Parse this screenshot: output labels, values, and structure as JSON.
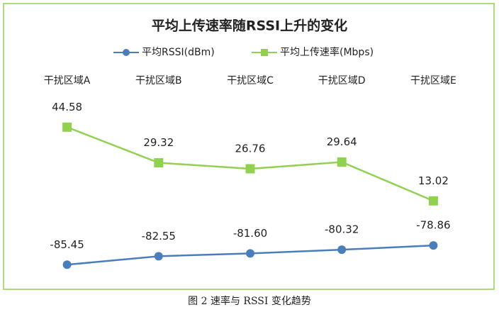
{
  "chart_data": {
    "type": "line",
    "title": "平均上传速率随RSSI上升的变化",
    "caption": "图 2 速率与 RSSI 变化趋势",
    "categories": [
      "干扰区域A",
      "干扰区域B",
      "干扰区域C",
      "干扰区域D",
      "干扰区域E"
    ],
    "series": [
      {
        "name": "平均RSSI(dBm)",
        "color": "#4a7ebb",
        "marker": "circle",
        "axis": "y2",
        "values": [
          -85.45,
          -82.55,
          -81.6,
          -80.32,
          -78.86
        ],
        "value_labels": [
          "-85.45",
          "-82.55",
          "-81.60",
          "-80.32",
          "-78.86"
        ]
      },
      {
        "name": "平均上传速率(Mbps)",
        "color": "#92d050",
        "marker": "square",
        "values": [
          44.58,
          29.32,
          26.76,
          29.64,
          13.02
        ]
      }
    ],
    "ylim": [
      -20,
      55
    ],
    "y2lim": [
      -90,
      -30
    ],
    "grid": false,
    "legend": "top"
  }
}
